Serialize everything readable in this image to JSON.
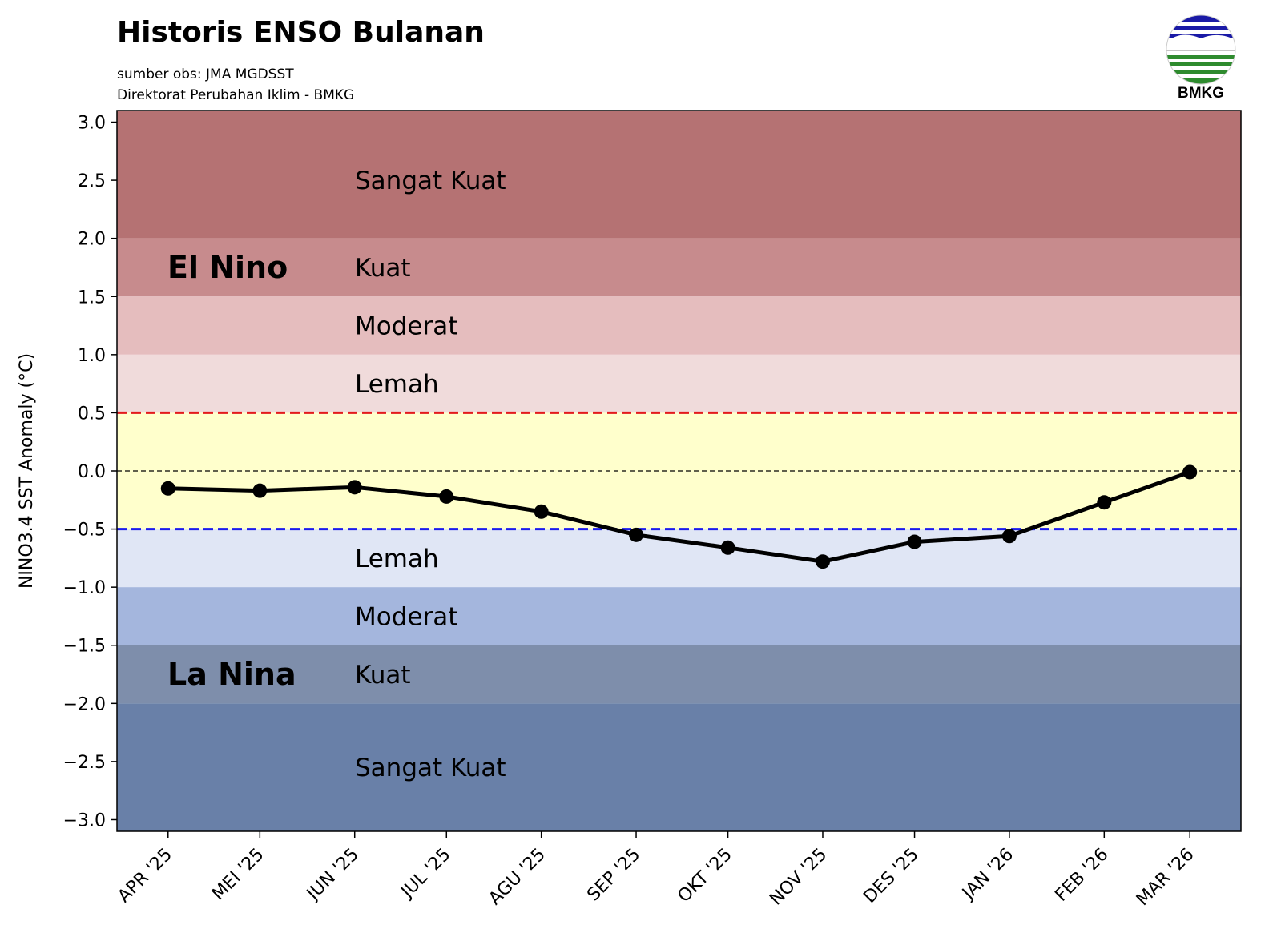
{
  "header": {
    "title": "Historis ENSO Bulanan",
    "source": "sumber obs: JMA MGDSST",
    "credit": "Direktorat Perubahan Iklim - BMKG"
  },
  "logo": {
    "text": "BMKG",
    "colors": [
      "#1a1aa6",
      "#2e8b2e"
    ]
  },
  "chart_data": {
    "type": "line",
    "title": "Historis ENSO Bulanan",
    "ylabel": "NINO3.4 SST Anomaly (°C)",
    "xlabel": "",
    "ylim": [
      -3.1,
      3.1
    ],
    "yticks": [
      3.0,
      2.5,
      2.0,
      1.5,
      1.0,
      0.5,
      0.0,
      -0.5,
      -1.0,
      -1.5,
      -2.0,
      -2.5,
      -3.0
    ],
    "ytick_labels": [
      "3.0",
      "2.5",
      "2.0",
      "1.5",
      "1.0",
      "0.5",
      "0.0",
      "−0.5",
      "−1.0",
      "−1.5",
      "−2.0",
      "−2.5",
      "−3.0"
    ],
    "categories": [
      "APR '25",
      "MEI '25",
      "JUN '25",
      "JUL '25",
      "AGU '25",
      "SEP '25",
      "OKT '25",
      "NOV '25",
      "DES '25",
      "JAN '26",
      "FEB '26",
      "MAR '26"
    ],
    "x_days": [
      0,
      30,
      61,
      91,
      122,
      153,
      183,
      214,
      244,
      275,
      306,
      334
    ],
    "series": [
      {
        "values": [
          -0.15,
          -0.17,
          -0.14,
          -0.22,
          -0.35,
          -0.55,
          -0.66,
          -0.78,
          -0.61,
          -0.56,
          -0.27,
          -0.01
        ],
        "color": "#000000"
      }
    ],
    "bands": [
      {
        "from": 2.0,
        "to": 3.1,
        "color": "#b57273",
        "label": "Sangat Kuat",
        "label_y": 2.5
      },
      {
        "from": 1.5,
        "to": 2.0,
        "color": "#c78b8d",
        "label": "Kuat",
        "label_y": 1.75
      },
      {
        "from": 1.0,
        "to": 1.5,
        "color": "#e5bdbe",
        "label": "Moderat",
        "label_y": 1.25
      },
      {
        "from": 0.5,
        "to": 1.0,
        "color": "#f0dbdb",
        "label": "Lemah",
        "label_y": 0.75
      },
      {
        "from": -0.5,
        "to": 0.5,
        "color": "#ffffcc",
        "label": "",
        "label_y": 0
      },
      {
        "from": -1.0,
        "to": -0.5,
        "color": "#e0e6f5",
        "label": "Lemah",
        "label_y": -0.75
      },
      {
        "from": -1.5,
        "to": -1.0,
        "color": "#a4b6dd",
        "label": "Moderat",
        "label_y": -1.25
      },
      {
        "from": -2.0,
        "to": -1.5,
        "color": "#7e8eab",
        "label": "Kuat",
        "label_y": -1.75
      },
      {
        "from": -3.1,
        "to": -2.0,
        "color": "#6980a8",
        "label": "Sangat Kuat",
        "label_y": -2.55
      }
    ],
    "regions": [
      {
        "label": "El Nino",
        "y": 1.75
      },
      {
        "label": "La Nina",
        "y": -1.75
      }
    ],
    "thresholds": [
      {
        "y": 0.5,
        "color": "#e31a1c"
      },
      {
        "y": -0.5,
        "color": "#1a1aee"
      },
      {
        "y": 0.0,
        "color": "#000000"
      }
    ],
    "grid": false,
    "legend": "none"
  }
}
